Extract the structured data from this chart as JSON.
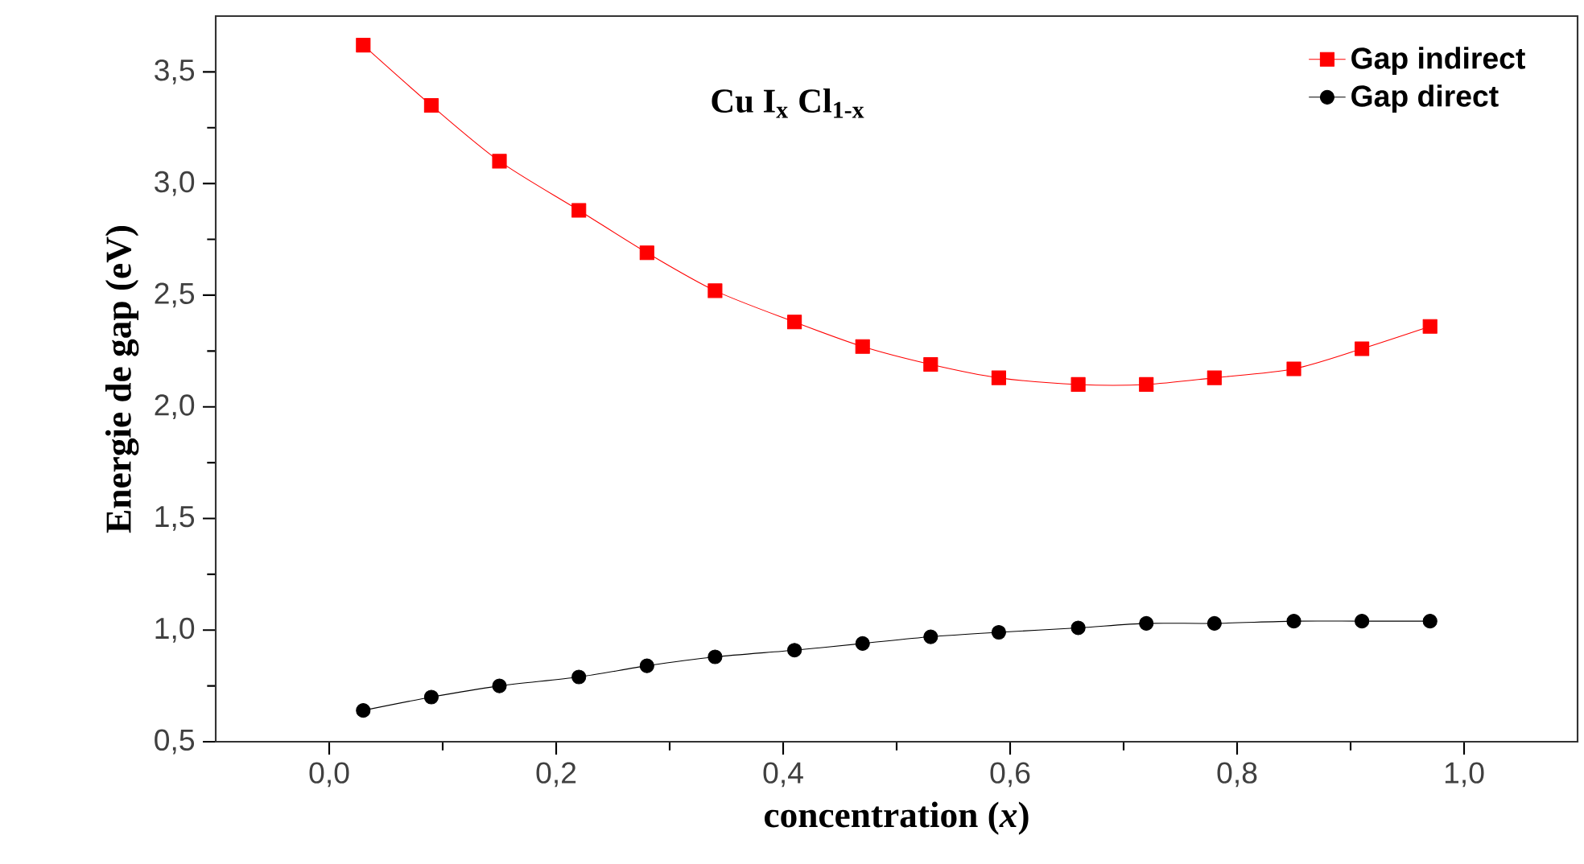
{
  "chart_data": {
    "type": "line",
    "xlabel": "concentration (*x*)",
    "ylabel": "Energie de gap (eV)",
    "annotations": [
      "Cu I$_{x}$ Cl$_{1-x}$"
    ],
    "x": [
      0.03,
      0.09,
      0.15,
      0.22,
      0.28,
      0.34,
      0.41,
      0.47,
      0.53,
      0.59,
      0.66,
      0.72,
      0.78,
      0.85,
      0.91,
      0.97
    ],
    "series": [
      {
        "name": "Gap indirect",
        "color": "#ff0000",
        "marker": "square",
        "values": [
          3.62,
          3.35,
          3.1,
          2.88,
          2.69,
          2.52,
          2.38,
          2.27,
          2.19,
          2.13,
          2.1,
          2.1,
          2.13,
          2.17,
          2.26,
          2.36
        ]
      },
      {
        "name": "Gap direct",
        "color": "#000000",
        "marker": "circle",
        "values": [
          0.64,
          0.7,
          0.75,
          0.79,
          0.84,
          0.88,
          0.91,
          0.94,
          0.97,
          0.99,
          1.01,
          1.03,
          1.03,
          1.04,
          1.04,
          1.04
        ]
      }
    ],
    "xlim": [
      -0.1,
      1.1
    ],
    "ylim": [
      0.5,
      3.75
    ],
    "xticks": [
      {
        "value": 0,
        "label": "0,0"
      },
      {
        "value": 0.2,
        "label": "0,2"
      },
      {
        "value": 0.4,
        "label": "0,4"
      },
      {
        "value": 0.6,
        "label": "0,6"
      },
      {
        "value": 0.8,
        "label": "0,8"
      },
      {
        "value": 1,
        "label": "1,0"
      }
    ],
    "yticks": [
      {
        "value": 0.5,
        "label": "0,5"
      },
      {
        "value": 1,
        "label": "1,0"
      },
      {
        "value": 1.5,
        "label": "1,5"
      },
      {
        "value": 2,
        "label": "2,0"
      },
      {
        "value": 2.5,
        "label": "2,5"
      },
      {
        "value": 3,
        "label": "3,0"
      },
      {
        "value": 3.5,
        "label": "3,5"
      }
    ],
    "grid": false,
    "legend": "top right",
    "line_style": "solid"
  }
}
